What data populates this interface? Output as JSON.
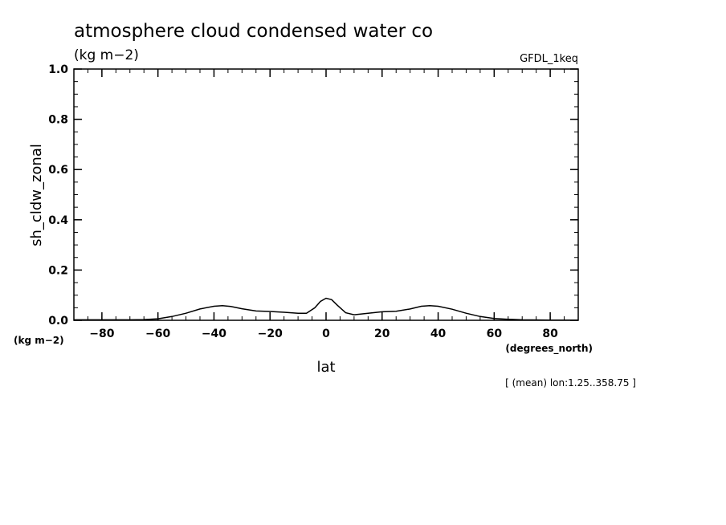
{
  "header": {
    "title": "atmosphere cloud condensed water co",
    "units": "(kg m−2)",
    "model": "GFDL_1keq"
  },
  "footer": {
    "y_units": "(kg m−2)",
    "x_units": "(degrees_north)",
    "note": "[ (mean) lon:1.25..358.75 ]"
  },
  "chart_data": {
    "type": "line",
    "xlabel": "lat",
    "ylabel": "sh_cldw_zonal",
    "xlim": [
      -90,
      90
    ],
    "ylim": [
      0,
      1
    ],
    "x_ticks": [
      -80,
      -60,
      -40,
      -20,
      0,
      20,
      40,
      60,
      80
    ],
    "x_tick_labels": [
      "−80",
      "−60",
      "−40",
      "−20",
      "0",
      "20",
      "40",
      "60",
      "80"
    ],
    "y_ticks": [
      0,
      0.2,
      0.4,
      0.6,
      0.8,
      1.0
    ],
    "y_tick_labels": [
      "0.0",
      "0.2",
      "0.4",
      "0.6",
      "0.8",
      "1.0"
    ],
    "grid": false,
    "series": [
      {
        "x": [
          -90,
          -80,
          -70,
          -65,
          -60,
          -55,
          -50,
          -45,
          -40,
          -37,
          -34,
          -30,
          -25,
          -20,
          -15,
          -10,
          -7,
          -4,
          -2,
          0,
          2,
          4,
          7,
          10,
          15,
          20,
          25,
          30,
          34,
          37,
          40,
          45,
          50,
          55,
          60,
          65,
          70,
          80,
          90
        ],
        "y": [
          0.002,
          0.002,
          0.002,
          0.003,
          0.006,
          0.015,
          0.028,
          0.045,
          0.056,
          0.058,
          0.055,
          0.046,
          0.037,
          0.035,
          0.032,
          0.028,
          0.028,
          0.05,
          0.075,
          0.088,
          0.082,
          0.06,
          0.03,
          0.022,
          0.028,
          0.034,
          0.036,
          0.045,
          0.056,
          0.058,
          0.056,
          0.044,
          0.028,
          0.015,
          0.007,
          0.004,
          0.002,
          0.001,
          0.001
        ]
      }
    ]
  }
}
